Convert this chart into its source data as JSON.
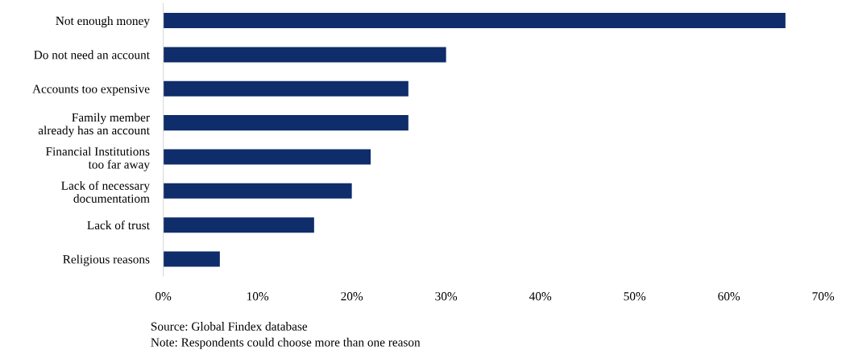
{
  "chart_data": {
    "type": "bar",
    "orientation": "horizontal",
    "categories": [
      "Not enough money",
      "Do not need an account",
      "Accounts too expensive",
      "Family member\nalready has an account",
      "Financial Institutions\ntoo far away",
      "Lack of necessary\ndocumentatiom",
      "Lack of trust",
      "Religious reasons"
    ],
    "values": [
      66,
      30,
      26,
      26,
      22,
      20,
      16,
      6
    ],
    "color": "#0f2c6b",
    "xlim": [
      0,
      70
    ],
    "xticks": [
      {
        "value": 0,
        "label": "0%"
      },
      {
        "value": 10,
        "label": "10%"
      },
      {
        "value": 20,
        "label": "20%"
      },
      {
        "value": 30,
        "label": "30%"
      },
      {
        "value": 40,
        "label": "40%"
      },
      {
        "value": 50,
        "label": "50%"
      },
      {
        "value": 60,
        "label": "60%"
      },
      {
        "value": 70,
        "label": "70%"
      }
    ],
    "grid": false,
    "annotations": [
      "Source: Global Findex database",
      "Note: Respondents could choose more than one reason"
    ]
  }
}
